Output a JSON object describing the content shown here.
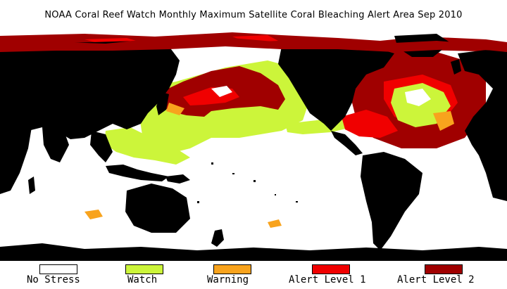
{
  "title": "NOAA Coral Reef Watch Monthly Maximum Satellite Coral Bleaching Alert Area    Sep 2010",
  "legend": [
    {
      "label": "No Stress",
      "color": "#ffffff"
    },
    {
      "label": "Watch",
      "color": "#ccf53a"
    },
    {
      "label": "Warning",
      "color": "#f8a31d"
    },
    {
      "label": "Alert Level 1",
      "color": "#f00000"
    },
    {
      "label": "Alert Level 2",
      "color": "#a00000"
    }
  ],
  "colors": {
    "land": "#000000",
    "ocean_no_stress": "#ffffff",
    "watch": "#ccf53a",
    "warning": "#f8a31d",
    "alert1": "#f00000",
    "alert2": "#a00000"
  }
}
